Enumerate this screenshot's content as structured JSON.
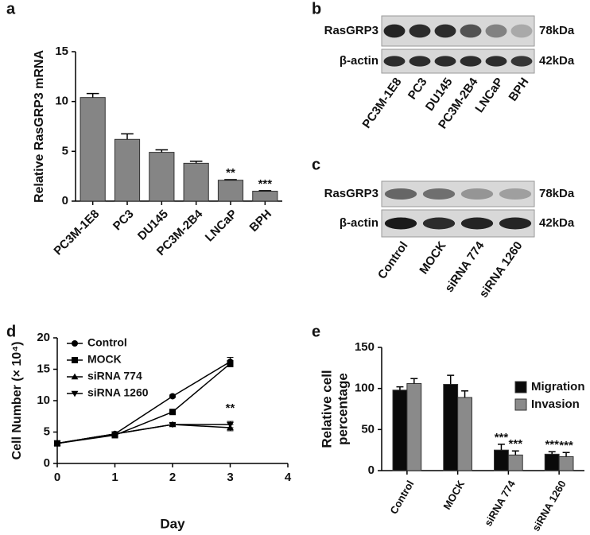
{
  "chart_data": [
    {
      "type": "bar",
      "panel": "a",
      "ylabel": "Relative RasGRP3 mRNA",
      "categories": [
        "PC3M-1E8",
        "PC3",
        "DU145",
        "PC3M-2B4",
        "LNCaP",
        "BPH"
      ],
      "values": [
        10.4,
        6.2,
        4.9,
        3.8,
        2.1,
        1.0
      ],
      "errors": [
        0.4,
        0.55,
        0.25,
        0.2,
        0.05,
        0.05
      ],
      "value_annotations": [
        null,
        null,
        null,
        null,
        "**",
        "***"
      ],
      "color": "#858585",
      "ylim": [
        0,
        15
      ],
      "yticks": [
        0,
        5,
        10,
        15
      ]
    },
    {
      "type": "line",
      "panel": "d",
      "xlabel": "Day",
      "ylabel": "Cell Number (× 10⁴)",
      "x": [
        0,
        1,
        2,
        3
      ],
      "xlim": [
        0,
        4
      ],
      "xticks": [
        0,
        1,
        2,
        3,
        4
      ],
      "ylim": [
        0,
        20
      ],
      "yticks": [
        0,
        5,
        10,
        15,
        20
      ],
      "legend": "upper left",
      "series": [
        {
          "name": "Control",
          "color": "#000000",
          "marker": "circle",
          "values": [
            3.2,
            4.7,
            10.7,
            16.2
          ],
          "errors": [
            0.2,
            0.2,
            0.2,
            0.7
          ]
        },
        {
          "name": "MOCK",
          "color": "#000000",
          "marker": "square",
          "values": [
            3.2,
            4.5,
            8.2,
            15.9
          ],
          "errors": [
            0.2,
            0.3,
            0.2,
            0.5
          ]
        },
        {
          "name": "siRNA 774",
          "color": "#000000",
          "marker": "triangle-up",
          "values": [
            3.2,
            4.7,
            6.2,
            5.7
          ],
          "errors": [
            0.2,
            0.2,
            0.2,
            0.5
          ]
        },
        {
          "name": "siRNA 1260",
          "color": "#000000",
          "marker": "triangle-down",
          "values": [
            3.2,
            4.7,
            6.2,
            6.2
          ],
          "errors": [
            0.2,
            0.2,
            0.2,
            0.5
          ]
        }
      ],
      "annotations": [
        {
          "text": "**",
          "x": 3
        }
      ]
    },
    {
      "type": "bar",
      "panel": "e",
      "ylabel": [
        "Relative cell",
        "percentage"
      ],
      "categories": [
        "Control",
        "MOCK",
        "siRNA 774",
        "siRNA 1260"
      ],
      "ylim": [
        0,
        150
      ],
      "yticks": [
        0,
        50,
        100,
        150
      ],
      "legend": "upper right",
      "series": [
        {
          "name": "Migration",
          "color": "#0a0a0a",
          "values": [
            98,
            105,
            25,
            20
          ],
          "errors": [
            4,
            11,
            7,
            3
          ],
          "value_annotations": [
            null,
            null,
            "***",
            "***"
          ]
        },
        {
          "name": "Invasion",
          "color": "#8a8a8a",
          "values": [
            106,
            89,
            19,
            17
          ],
          "errors": [
            6,
            8,
            5,
            5
          ],
          "value_annotations": [
            null,
            null,
            "***",
            "***"
          ]
        }
      ]
    }
  ],
  "blots": [
    {
      "panel": "b",
      "rows": [
        {
          "label": "RasGRP3",
          "marker": "78kDa"
        },
        {
          "label": "β-actin",
          "marker": "42kDa"
        }
      ],
      "lanes": [
        "PC3M-1E8",
        "PC3",
        "DU145",
        "PC3M-2B4",
        "LNCaP",
        "BPH"
      ]
    },
    {
      "panel": "c",
      "rows": [
        {
          "label": "RasGRP3",
          "marker": "78kDa"
        },
        {
          "label": "β-actin",
          "marker": "42kDa"
        }
      ],
      "lanes": [
        "Control",
        "MOCK",
        "siRNA 774",
        "siRNA 1260"
      ]
    }
  ]
}
